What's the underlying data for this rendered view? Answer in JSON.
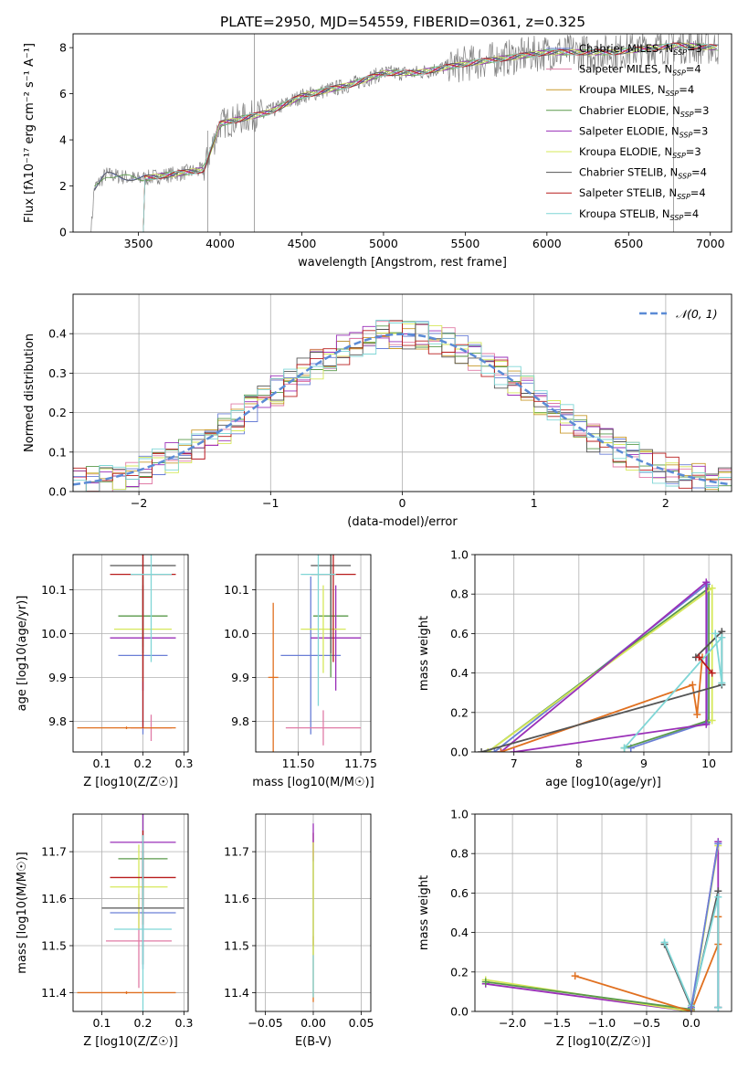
{
  "figure_title": "PLATE=2950, MJD=54559, FIBERID=0361, z=0.325",
  "legend": [
    {
      "label": "Chabrier MILES, N",
      "sub": "SSP",
      "tail": "=3",
      "color": "#6a7fd6"
    },
    {
      "label": "Salpeter MILES, N",
      "sub": "SSP",
      "tail": "=4",
      "color": "#e07ba6"
    },
    {
      "label": "Kroupa MILES, N",
      "sub": "SSP",
      "tail": "=4",
      "color": "#c89a2c"
    },
    {
      "label": "Chabrier ELODIE, N",
      "sub": "SSP",
      "tail": "=3",
      "color": "#5a9a4a"
    },
    {
      "label": "Salpeter ELODIE, N",
      "sub": "SSP",
      "tail": "=3",
      "color": "#9a2fb8"
    },
    {
      "label": "Kroupa ELODIE, N",
      "sub": "SSP",
      "tail": "=3",
      "color": "#d6e85a"
    },
    {
      "label": "Chabrier STELIB, N",
      "sub": "SSP",
      "tail": "=4",
      "color": "#555555"
    },
    {
      "label": "Salpeter STELIB, N",
      "sub": "SSP",
      "tail": "=4",
      "color": "#b81c1c"
    },
    {
      "label": "Kroupa STELIB, N",
      "sub": "SSP",
      "tail": "=4",
      "color": "#7fd6d6"
    }
  ],
  "extra_colors": {
    "data": "#808080",
    "orange": "#e07020",
    "normal": "#5b8bd6"
  },
  "chart_data": [
    {
      "id": "spectrum",
      "type": "line",
      "xlabel": "wavelength [Angstrom, rest frame]",
      "ylabel": "Flux [fλ10⁻¹⁷ erg cm⁻² s⁻¹ A⁻¹]",
      "xlim": [
        3100,
        7130
      ],
      "ylim": [
        0,
        8.6
      ],
      "xticks": [
        "3500",
        "4000",
        "4500",
        "5000",
        "5500",
        "6000",
        "6500",
        "7000"
      ],
      "yticks": [
        "0",
        "2",
        "4",
        "6",
        "8"
      ],
      "continuum": [
        [
          3210,
          0
        ],
        [
          3230,
          1.9
        ],
        [
          3300,
          2.5
        ],
        [
          3500,
          2.3
        ],
        [
          3700,
          2.5
        ],
        [
          3900,
          2.7
        ],
        [
          4000,
          4.7
        ],
        [
          4300,
          5.2
        ],
        [
          4500,
          5.9
        ],
        [
          4800,
          6.4
        ],
        [
          5000,
          6.9
        ],
        [
          5200,
          6.9
        ],
        [
          5500,
          7.3
        ],
        [
          5800,
          7.6
        ],
        [
          6000,
          7.8
        ],
        [
          6400,
          7.8
        ],
        [
          6800,
          8.1
        ],
        [
          7050,
          8.0
        ]
      ],
      "grid": false
    },
    {
      "id": "residuals",
      "type": "histogram",
      "xlabel": "(data-model)/error",
      "ylabel": "Normed distribution",
      "xlim": [
        -2.5,
        2.5
      ],
      "ylim": [
        0,
        0.5
      ],
      "xticks": [
        "−2",
        "−1",
        "0",
        "1",
        "2"
      ],
      "yticks": [
        "0.0",
        "0.1",
        "0.2",
        "0.3",
        "0.4"
      ],
      "reference_label": "𝒩(0, 1)",
      "grid": true
    },
    {
      "id": "age-vs-Z",
      "type": "errorbar",
      "xlabel": "Z [log10(Z/Z☉)]",
      "ylabel": "age  [log10(age/yr)]",
      "xlim": [
        0.03,
        0.31
      ],
      "ylim": [
        9.73,
        10.18
      ],
      "xticks": [
        "0.1",
        "0.2",
        "0.3"
      ],
      "yticks": [
        "9.8",
        "9.9",
        "10.0",
        "10.1"
      ],
      "points": [
        {
          "c": "#6a7fd6",
          "x": 0.2,
          "xerr": 0.06,
          "y": 9.95,
          "yerr": 0.18
        },
        {
          "c": "#e07ba6",
          "x": 0.22,
          "xerr": 0.05,
          "y": 9.785,
          "yerr": 0.03
        },
        {
          "c": "#e07020",
          "x": 0.16,
          "xerr": 0.12,
          "y": 9.785,
          "yerr": 0.003
        },
        {
          "c": "#5a9a4a",
          "x": 0.2,
          "xerr": 0.06,
          "y": 10.04,
          "yerr": 0.07
        },
        {
          "c": "#9a2fb8",
          "x": 0.2,
          "xerr": 0.08,
          "y": 9.99,
          "yerr": 0.12
        },
        {
          "c": "#d6e85a",
          "x": 0.2,
          "xerr": 0.07,
          "y": 10.01,
          "yerr": 0.12
        },
        {
          "c": "#555555",
          "x": 0.2,
          "xerr": 0.08,
          "y": 10.155,
          "yerr": 0.2
        },
        {
          "c": "#b81c1c",
          "x": 0.2,
          "xerr": 0.08,
          "y": 10.135,
          "yerr": 0.35
        },
        {
          "c": "#7fd6d6",
          "x": 0.22,
          "xerr": 0.05,
          "y": 10.135,
          "yerr": 0.2
        }
      ],
      "grid": true
    },
    {
      "id": "age-vs-mass",
      "type": "errorbar",
      "xlabel": "mass [log10(M/M☉)]",
      "ylabel": "",
      "xlim": [
        11.33,
        11.79
      ],
      "ylim": [
        9.73,
        10.18
      ],
      "xticks": [
        "11.50",
        "11.75"
      ],
      "yticks": [
        "9.8",
        "9.9",
        "10.0",
        "10.1"
      ],
      "points": [
        {
          "c": "#6a7fd6",
          "x": 11.55,
          "xerr": 0.12,
          "y": 9.95,
          "yerr": 0.18
        },
        {
          "c": "#e07ba6",
          "x": 11.6,
          "xerr": 0.15,
          "y": 9.785,
          "yerr": 0.04
        },
        {
          "c": "#e07020",
          "x": 11.4,
          "xerr": 0.02,
          "y": 9.9,
          "yerr": 0.17
        },
        {
          "c": "#5a9a4a",
          "x": 11.63,
          "xerr": 0.07,
          "y": 10.04,
          "yerr": 0.14
        },
        {
          "c": "#9a2fb8",
          "x": 11.65,
          "xerr": 0.1,
          "y": 9.99,
          "yerr": 0.12
        },
        {
          "c": "#d6e85a",
          "x": 11.6,
          "xerr": 0.09,
          "y": 10.01,
          "yerr": 0.1
        },
        {
          "c": "#555555",
          "x": 11.63,
          "xerr": 0.08,
          "y": 10.155,
          "yerr": 0.2
        },
        {
          "c": "#b81c1c",
          "x": 11.64,
          "xerr": 0.09,
          "y": 10.135,
          "yerr": 0.2
        },
        {
          "c": "#7fd6d6",
          "x": 11.58,
          "xerr": 0.07,
          "y": 10.135,
          "yerr": 0.3
        }
      ],
      "grid": true
    },
    {
      "id": "weight-vs-age",
      "type": "line",
      "xlabel": "age  [log10(age/yr)]",
      "ylabel": "mass weight",
      "xlim": [
        6.4,
        10.35
      ],
      "ylim": [
        0,
        1.0
      ],
      "xticks": [
        "7",
        "8",
        "9",
        "10"
      ],
      "yticks": [
        "0.0",
        "0.2",
        "0.4",
        "0.6",
        "0.8",
        "1.0"
      ],
      "series": [
        {
          "c": "#6a7fd6",
          "pts": [
            [
              6.7,
              0.0
            ],
            [
              9.97,
              0.85
            ],
            [
              9.97,
              0.15
            ],
            [
              8.8,
              0.02
            ]
          ]
        },
        {
          "c": "#5a9a4a",
          "pts": [
            [
              6.6,
              0.0
            ],
            [
              10.0,
              0.83
            ],
            [
              10.0,
              0.16
            ],
            [
              8.7,
              0.02
            ]
          ]
        },
        {
          "c": "#d6e85a",
          "pts": [
            [
              6.6,
              0.0
            ],
            [
              10.05,
              0.83
            ],
            [
              10.05,
              0.16
            ]
          ]
        },
        {
          "c": "#9a2fb8",
          "pts": [
            [
              6.8,
              0.0
            ],
            [
              9.96,
              0.86
            ],
            [
              9.96,
              0.14
            ],
            [
              7.0,
              0.0
            ]
          ]
        },
        {
          "c": "#e07020",
          "pts": [
            [
              6.8,
              0.0
            ],
            [
              9.75,
              0.34
            ],
            [
              9.82,
              0.19
            ],
            [
              9.9,
              0.48
            ]
          ]
        },
        {
          "c": "#555555",
          "pts": [
            [
              6.5,
              0.0
            ],
            [
              10.2,
              0.34
            ],
            [
              10.2,
              0.61
            ],
            [
              9.8,
              0.48
            ]
          ]
        },
        {
          "c": "#7fd6d6",
          "pts": [
            [
              8.7,
              0.02
            ],
            [
              10.2,
              0.58
            ],
            [
              10.2,
              0.35
            ],
            [
              10.1,
              0.6
            ]
          ]
        },
        {
          "c": "#b81c1c",
          "pts": [
            [
              9.85,
              0.48
            ],
            [
              10.05,
              0.4
            ]
          ]
        }
      ],
      "grid": true
    },
    {
      "id": "mass-vs-Z",
      "type": "errorbar",
      "xlabel": "Z [log10(Z/Z☉)]",
      "ylabel": "mass [log10(M/M☉)]",
      "xlim": [
        0.03,
        0.31
      ],
      "ylim": [
        11.36,
        11.78
      ],
      "xticks": [
        "0.1",
        "0.2",
        "0.3"
      ],
      "yticks": [
        "11.4",
        "11.5",
        "11.6",
        "11.7"
      ],
      "points": [
        {
          "c": "#6a7fd6",
          "x": 0.2,
          "xerr": 0.08,
          "y": 11.57,
          "yerr": 0.12
        },
        {
          "c": "#e07ba6",
          "x": 0.19,
          "xerr": 0.08,
          "y": 11.51,
          "yerr": 0.1
        },
        {
          "c": "#e07020",
          "x": 0.16,
          "xerr": 0.12,
          "y": 11.4,
          "yerr": 0.003
        },
        {
          "c": "#5a9a4a",
          "x": 0.2,
          "xerr": 0.06,
          "y": 11.685,
          "yerr": 0.1
        },
        {
          "c": "#9a2fb8",
          "x": 0.2,
          "xerr": 0.08,
          "y": 11.72,
          "yerr": 0.08
        },
        {
          "c": "#d6e85a",
          "x": 0.19,
          "xerr": 0.07,
          "y": 11.625,
          "yerr": 0.09
        },
        {
          "c": "#555555",
          "x": 0.2,
          "xerr": 0.1,
          "y": 11.58,
          "yerr": 0.12
        },
        {
          "c": "#b81c1c",
          "x": 0.2,
          "xerr": 0.08,
          "y": 11.645,
          "yerr": 0.1
        },
        {
          "c": "#7fd6d6",
          "x": 0.2,
          "xerr": 0.07,
          "y": 11.535,
          "yerr": 0.2
        }
      ],
      "grid": true
    },
    {
      "id": "mass-vs-ebv",
      "type": "errorbar",
      "xlabel": "E(B-V)",
      "ylabel": "",
      "xlim": [
        -0.06,
        0.06
      ],
      "ylim": [
        11.36,
        11.78
      ],
      "xticks": [
        "−0.05",
        "0.00",
        "0.05"
      ],
      "yticks": [
        "11.4",
        "11.5",
        "11.6",
        "11.7"
      ],
      "points": [
        {
          "c": "#b81c1c",
          "x": 0,
          "xerr": 0,
          "y": 11.62,
          "yerr": 0.12
        },
        {
          "c": "#e07020",
          "x": 0,
          "xerr": 0,
          "y": 11.45,
          "yerr": 0.07
        },
        {
          "c": "#7fd6d6",
          "x": 0,
          "xerr": 0,
          "y": 11.54,
          "yerr": 0.15
        },
        {
          "c": "#9a2fb8",
          "x": 0,
          "xerr": 0,
          "y": 11.72,
          "yerr": 0.04
        },
        {
          "c": "#d6e85a",
          "x": 0,
          "xerr": 0,
          "y": 11.6,
          "yerr": 0.12
        }
      ],
      "grid": true
    },
    {
      "id": "weight-vs-Z",
      "type": "line",
      "xlabel": "Z [log10(Z/Z☉)]",
      "ylabel": "mass weight",
      "xlim": [
        -2.42,
        0.45
      ],
      "ylim": [
        0,
        1.0
      ],
      "xticks": [
        "−2.0",
        "−1.5",
        "−1.0",
        "−0.5",
        "0.0"
      ],
      "yticks": [
        "0.0",
        "0.2",
        "0.4",
        "0.6",
        "0.8",
        "1.0"
      ],
      "series": [
        {
          "c": "#9a2fb8",
          "pts": [
            [
              -2.3,
              0.14
            ],
            [
              0.0,
              0.0
            ],
            [
              0.3,
              0.86
            ],
            [
              0.3,
              0.02
            ]
          ]
        },
        {
          "c": "#d6e85a",
          "pts": [
            [
              -2.3,
              0.16
            ],
            [
              0.0,
              0.0
            ],
            [
              0.3,
              0.84
            ]
          ]
        },
        {
          "c": "#5a9a4a",
          "pts": [
            [
              -2.3,
              0.15
            ],
            [
              0.0,
              0.01
            ]
          ]
        },
        {
          "c": "#e07020",
          "pts": [
            [
              -1.3,
              0.18
            ],
            [
              0.0,
              0.0
            ],
            [
              0.3,
              0.34
            ],
            [
              0.3,
              0.48
            ]
          ]
        },
        {
          "c": "#555555",
          "pts": [
            [
              -0.3,
              0.34
            ],
            [
              0.0,
              0.02
            ],
            [
              0.3,
              0.61
            ],
            [
              0.3,
              0.02
            ]
          ]
        },
        {
          "c": "#7fd6d6",
          "pts": [
            [
              -0.3,
              0.35
            ],
            [
              0.0,
              0.03
            ],
            [
              0.3,
              0.58
            ],
            [
              0.3,
              0.02
            ]
          ]
        },
        {
          "c": "#6a7fd6",
          "pts": [
            [
              0.0,
              0.02
            ],
            [
              0.3,
              0.85
            ]
          ]
        }
      ],
      "grid": true
    }
  ]
}
